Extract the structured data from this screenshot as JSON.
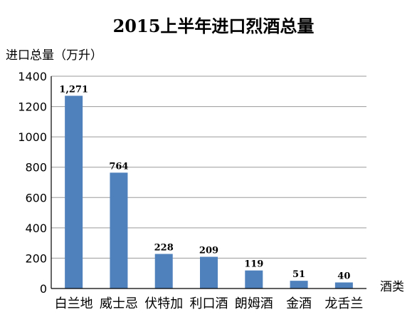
{
  "chart_data": {
    "type": "bar",
    "title": "2015上半年进口烈酒总量",
    "ylabel": "进口总量（万升）",
    "xlabel": "酒类",
    "categories": [
      "白兰地",
      "威士忌",
      "伏特加",
      "利口酒",
      "朗姆酒",
      "金酒",
      "龙舌兰"
    ],
    "values": [
      1271,
      764,
      228,
      209,
      119,
      51,
      40
    ],
    "data_labels": [
      "1,271",
      "764",
      "228",
      "209",
      "119",
      "51",
      "40"
    ],
    "ylim": [
      0,
      1400
    ],
    "yticks": [
      0,
      200,
      400,
      600,
      800,
      1000,
      1200,
      1400
    ],
    "grid": true,
    "bar_color": "#4f81bd"
  }
}
